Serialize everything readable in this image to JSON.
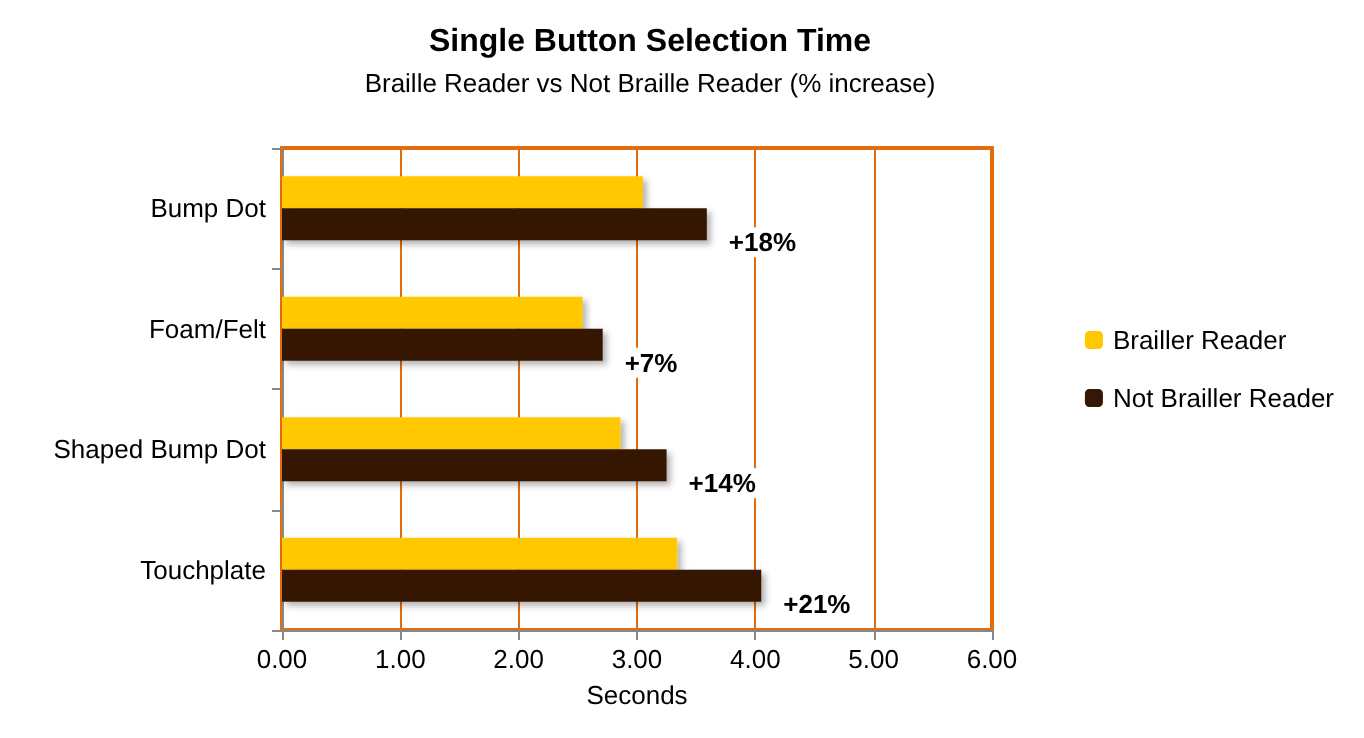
{
  "chart_data": {
    "type": "bar",
    "orientation": "horizontal",
    "title": "Single Button Selection Time",
    "subtitle": "Braille Reader vs Not Braille Reader (% increase)",
    "xlabel": "Seconds",
    "categories": [
      "Bump Dot",
      "Foam/Felt",
      "Shaped Bump Dot",
      "Touchplate"
    ],
    "series": [
      {
        "name": "Brailler Reader",
        "color": "#ffc800",
        "values": [
          3.05,
          2.54,
          2.86,
          3.34
        ]
      },
      {
        "name": "Not Brailler Reader",
        "color": "#341705",
        "values": [
          3.59,
          2.71,
          3.25,
          4.05
        ]
      }
    ],
    "annotations": [
      {
        "text": "+18%",
        "x": 3.59,
        "y": "Bump Dot"
      },
      {
        "text": "+7%",
        "x": 2.71,
        "y": "Foam/Felt"
      },
      {
        "text": "+14%",
        "x": 3.25,
        "y": "Shaped Bump Dot"
      },
      {
        "text": "+21%",
        "x": 4.05,
        "y": "Touchplate"
      }
    ],
    "xlim": [
      0,
      6
    ],
    "xticks": [
      {
        "value": 0,
        "label": "0.00"
      },
      {
        "value": 1,
        "label": "1.00"
      },
      {
        "value": 2,
        "label": "2.00"
      },
      {
        "value": 3,
        "label": "3.00"
      },
      {
        "value": 4,
        "label": "4.00"
      },
      {
        "value": 5,
        "label": "5.00"
      },
      {
        "value": 6,
        "label": "6.00"
      }
    ],
    "grid": "x",
    "legend": "right"
  }
}
